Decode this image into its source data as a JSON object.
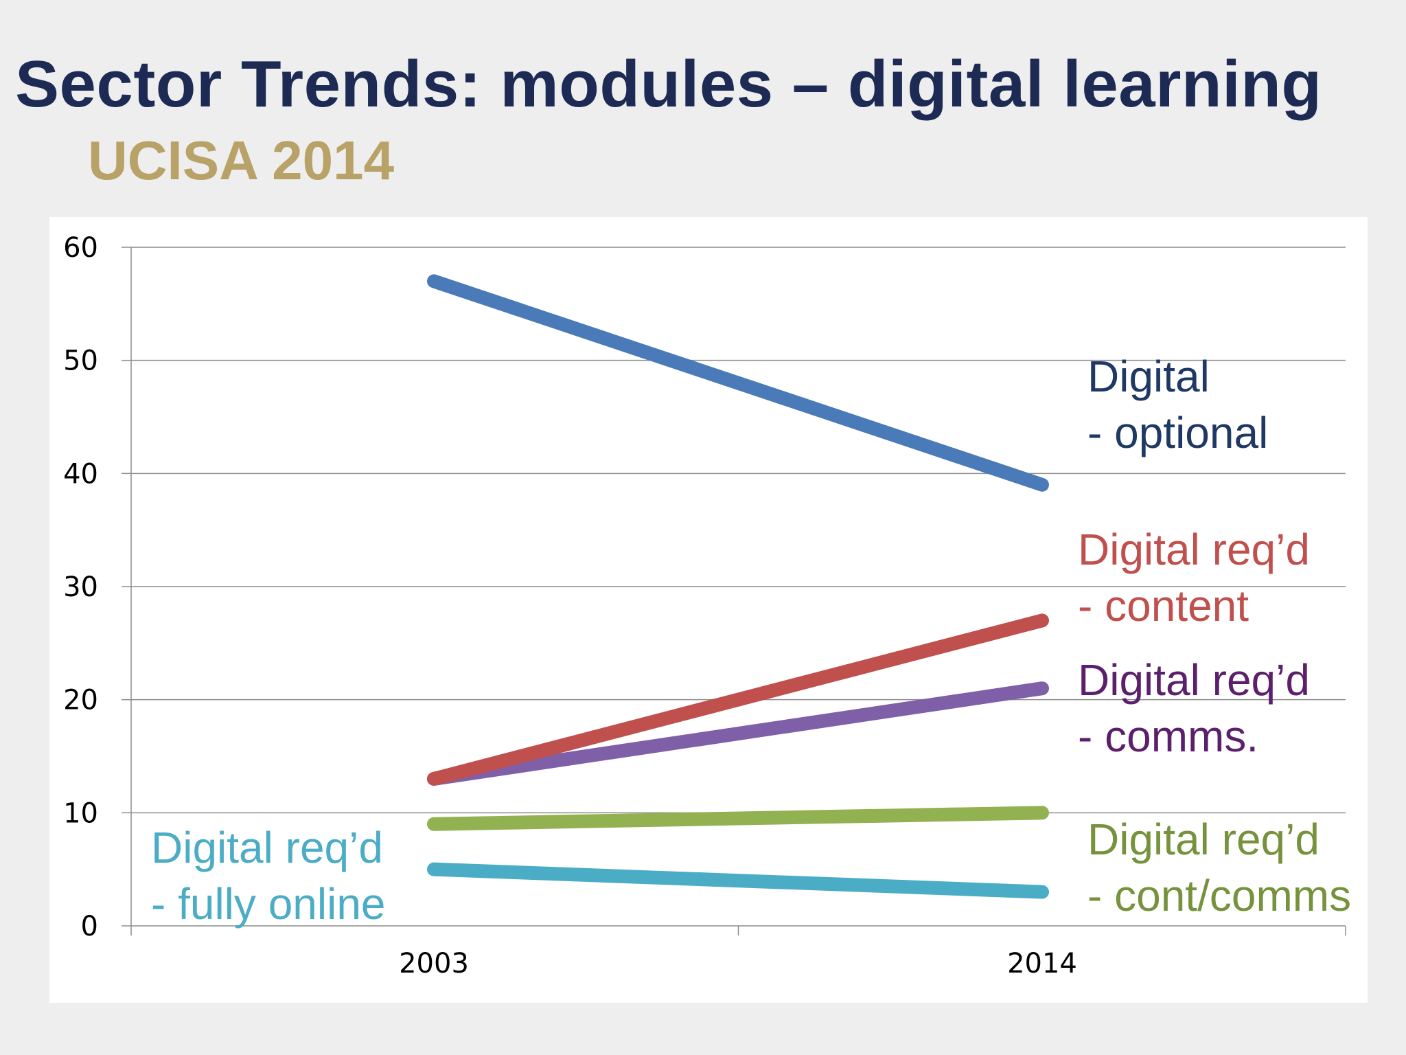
{
  "page": {
    "title": "Sector Trends: modules – digital learning",
    "subtitle": "UCISA 2014"
  },
  "chart_data": {
    "type": "line",
    "categories": [
      "2003",
      "2014"
    ],
    "ylim": [
      0,
      60
    ],
    "yticks": [
      0,
      10,
      20,
      30,
      40,
      50,
      60
    ],
    "grid": true,
    "legend": "inline labels",
    "series": [
      {
        "name": "Digital - optional",
        "label_lines": [
          "Digital",
          "- optional"
        ],
        "values": [
          57,
          39
        ],
        "color": "#4a7ab8",
        "label_color": "#1f3864",
        "label_anchor": "right"
      },
      {
        "name": "Digital req’d - content",
        "label_lines": [
          "Digital req’d",
          "- content"
        ],
        "values": [
          13,
          27
        ],
        "color": "#c0504d",
        "label_color": "#c0504d",
        "label_anchor": "right"
      },
      {
        "name": "Digital req’d - comms.",
        "label_lines": [
          "Digital req’d",
          "- comms."
        ],
        "values": [
          13,
          21
        ],
        "color": "#7f60a8",
        "label_color": "#5b1f6b",
        "label_anchor": "right"
      },
      {
        "name": "Digital req’d - cont/comms",
        "label_lines": [
          "Digital req’d",
          "- cont/comms"
        ],
        "values": [
          9,
          10
        ],
        "color": "#92b150",
        "label_color": "#76923c",
        "label_anchor": "right"
      },
      {
        "name": "Digital req’d - fully online",
        "label_lines": [
          "Digital req’d",
          "- fully online"
        ],
        "values": [
          5,
          3
        ],
        "color": "#4bacc6",
        "label_color": "#4bacc6",
        "label_anchor": "left"
      }
    ]
  }
}
